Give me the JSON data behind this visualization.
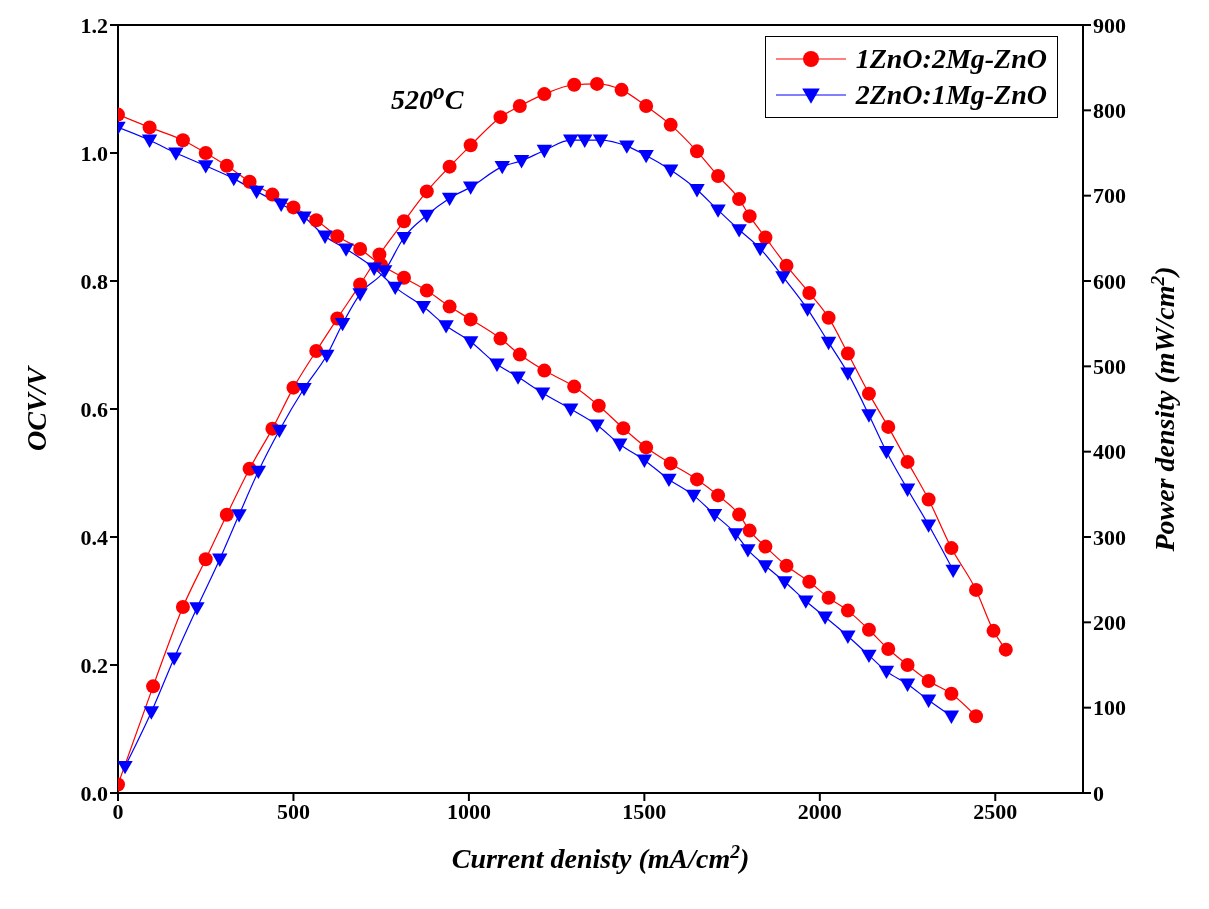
{
  "chart_data": {
    "type": "line",
    "xlabel": "Current denisty (mA/cm$^{2}$)",
    "ylabel": "OCV/V",
    "y2label": "Power density (mW/cm$^{2}$)",
    "annotations": [
      "520$^{o}$C"
    ],
    "xlim": [
      0,
      2750
    ],
    "xticks": [
      0,
      500,
      1000,
      1500,
      2000,
      2500
    ],
    "ylim": [
      0,
      1.2
    ],
    "yticks": [
      {
        "value": 0,
        "label": "0.0"
      },
      {
        "value": 0.2,
        "label": "0.2"
      },
      {
        "value": 0.4,
        "label": "0.4"
      },
      {
        "value": 0.6,
        "label": "0.6"
      },
      {
        "value": 0.8,
        "label": "0.8"
      },
      {
        "value": 1,
        "label": "1.0"
      },
      {
        "value": 1.2,
        "label": "1.2"
      }
    ],
    "y2lim": [
      0,
      900
    ],
    "y2ticks": [
      0,
      100,
      200,
      300,
      400,
      500,
      600,
      700,
      800,
      900
    ],
    "legend": "top right",
    "series": [
      {
        "name": "1ZnO:2Mg-ZnO",
        "color": "#ff0000",
        "marker": "circle",
        "x": [
          0,
          90,
          185,
          250,
          310,
          375,
          440,
          500,
          565,
          625,
          690,
          750,
          815,
          880,
          945,
          1005,
          1090,
          1145,
          1215,
          1300,
          1370,
          1440,
          1505,
          1575,
          1650,
          1710,
          1770,
          1800,
          1845,
          1905,
          1970,
          2025,
          2080,
          2140,
          2195,
          2250,
          2310,
          2375,
          2445
        ],
        "values": [
          1.06,
          1.04,
          1.02,
          1.0,
          0.98,
          0.955,
          0.935,
          0.915,
          0.895,
          0.87,
          0.85,
          0.825,
          0.805,
          0.785,
          0.76,
          0.74,
          0.71,
          0.685,
          0.66,
          0.635,
          0.605,
          0.57,
          0.54,
          0.515,
          0.49,
          0.465,
          0.435,
          0.41,
          0.385,
          0.355,
          0.33,
          0.305,
          0.285,
          0.255,
          0.225,
          0.2,
          0.175,
          0.155,
          0.12
        ]
      },
      {
        "name": "2ZnO:1Mg-ZnO",
        "color": "#0000ff",
        "marker": "triangle",
        "x": [
          0,
          90,
          165,
          250,
          330,
          395,
          465,
          530,
          590,
          650,
          730,
          790,
          870,
          935,
          1005,
          1080,
          1140,
          1210,
          1290,
          1365,
          1430,
          1500,
          1570,
          1640,
          1700,
          1760,
          1795,
          1845,
          1900,
          1960,
          2015,
          2080,
          2140,
          2190,
          2250,
          2310,
          2375
        ],
        "values": [
          1.04,
          1.02,
          1.0,
          0.98,
          0.96,
          0.94,
          0.92,
          0.9,
          0.87,
          0.85,
          0.82,
          0.79,
          0.76,
          0.73,
          0.705,
          0.67,
          0.65,
          0.625,
          0.6,
          0.575,
          0.545,
          0.52,
          0.49,
          0.465,
          0.435,
          0.405,
          0.38,
          0.355,
          0.33,
          0.3,
          0.275,
          0.245,
          0.215,
          0.19,
          0.17,
          0.145,
          0.12
        ]
      },
      {
        "color": "#ff0000",
        "marker": "circle",
        "axis": "y2",
        "x": [
          0,
          100,
          185,
          250,
          310,
          375,
          440,
          500,
          565,
          625,
          690,
          745,
          815,
          880,
          945,
          1005,
          1090,
          1145,
          1215,
          1300,
          1365,
          1435,
          1505,
          1575,
          1650,
          1710,
          1770,
          1800,
          1845,
          1905,
          1970,
          2025,
          2080,
          2140,
          2195,
          2250,
          2310,
          2375,
          2445,
          2495,
          2530
        ],
        "values": [
          10,
          125,
          218,
          274,
          326,
          380,
          427,
          475,
          518,
          556,
          596,
          631,
          670,
          705,
          734,
          759,
          792,
          805,
          819,
          830,
          831,
          824,
          805,
          783,
          752,
          723,
          696,
          676,
          651,
          618,
          586,
          557,
          515,
          468,
          429,
          388,
          344,
          287,
          238,
          190,
          168
        ]
      },
      {
        "color": "#0000ff",
        "marker": "triangle",
        "axis": "y2",
        "x": [
          20,
          95,
          160,
          225,
          290,
          345,
          400,
          460,
          530,
          595,
          640,
          690,
          760,
          815,
          880,
          945,
          1005,
          1095,
          1150,
          1215,
          1290,
          1330,
          1375,
          1450,
          1505,
          1575,
          1650,
          1710,
          1770,
          1830,
          1895,
          1965,
          2025,
          2080,
          2140,
          2190,
          2250,
          2310,
          2380
        ],
        "values": [
          31,
          95,
          158,
          217,
          274,
          326,
          377,
          425,
          474,
          513,
          550,
          585,
          612,
          651,
          677,
          697,
          710,
          734,
          741,
          753,
          765,
          765,
          765,
          758,
          747,
          730,
          707,
          683,
          660,
          638,
          605,
          567,
          528,
          492,
          443,
          400,
          356,
          314,
          261
        ]
      }
    ]
  }
}
